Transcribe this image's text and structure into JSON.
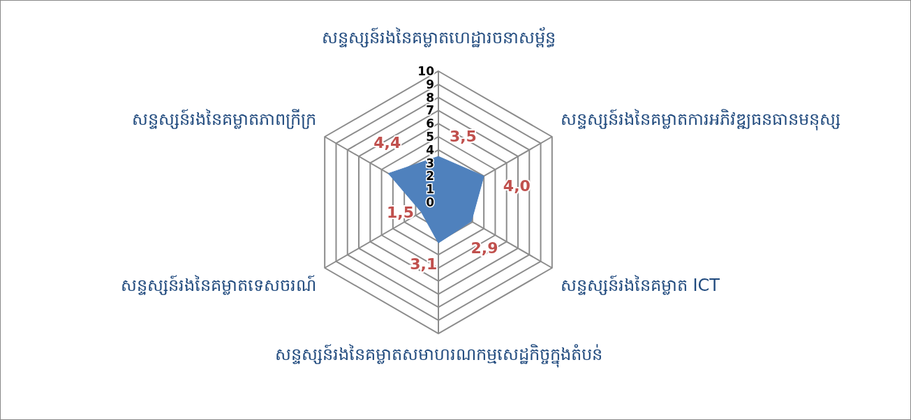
{
  "chart_data": {
    "type": "radar",
    "categories": [
      "សន្ទស្សន៍រងនៃគម្លាតហេដ្ឋារចនាសម្ព័ន្ធ",
      "សន្ទស្សន៍រងនៃគម្លាតការអភិវឌ្ឍធនធានមនុស្ស",
      "សន្ទស្សន៍រងនៃគម្លាត ICT",
      "សន្ទស្សន៍រងនៃគម្លាតសមាហរណកម្មសេដ្ឋកិច្ចក្នុងតំបន់",
      "សន្ទស្សន៍រងនៃគម្លាតទេសចរណ៍",
      "សន្ទស្សន៍រងនៃគម្លាតភាពក្រីក្រ"
    ],
    "series": [
      {
        "color": "#4f81bd",
        "values": [
          3.5,
          4.0,
          2.9,
          3.1,
          1.5,
          4.4
        ],
        "value_labels": [
          "3,5",
          "4,0",
          "2,9",
          "3,1",
          "1,5",
          "4,4"
        ]
      }
    ],
    "ylim": [
      0,
      10
    ],
    "yticks": [
      0,
      1,
      2,
      3,
      4,
      5,
      6,
      7,
      8,
      9,
      10
    ],
    "grid": true
  }
}
